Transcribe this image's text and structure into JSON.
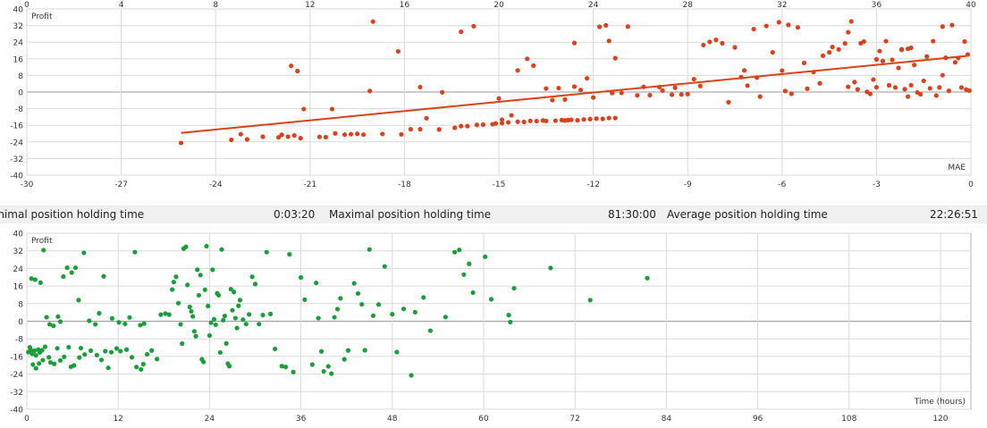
{
  "stats": {
    "min_label": "inimal position holding time",
    "min_value": "0:03:20",
    "max_label": "Maximal position holding time",
    "max_value": "81:30:00",
    "avg_label": "Average position holding time",
    "avg_value": "22:26:51"
  },
  "colors": {
    "mae_series": "#d9421c",
    "time_series": "#1a9e3c",
    "grid": "#d9d9d9",
    "zero_line": "#9a9a9a"
  },
  "chart_data": [
    {
      "type": "scatter",
      "ylabel": "Profit",
      "xlabel": "MAE",
      "xlim": [
        -30,
        0
      ],
      "ylim": [
        -40,
        40
      ],
      "x_ticks": [
        "-30",
        "-27",
        "-24",
        "-21",
        "-18",
        "-15",
        "-12",
        "-9",
        "-6",
        "-3",
        "0"
      ],
      "y_ticks": [
        "40",
        "32",
        "24",
        "16",
        "8",
        "0",
        "-8",
        "-16",
        "-24",
        "-32",
        "-40"
      ],
      "top_ticks": [
        "0",
        "4",
        "8",
        "12",
        "16",
        "20",
        "24",
        "28",
        "32",
        "36",
        "40"
      ],
      "trendline": [
        [
          -25.1,
          -19.7
        ],
        [
          -0.1,
          17.4
        ]
      ],
      "points": [
        [
          -25.1,
          -24.5
        ],
        [
          -23.5,
          -23
        ],
        [
          -23.2,
          -20.3
        ],
        [
          -23.0,
          -22.8
        ],
        [
          -22.5,
          -21.5
        ],
        [
          -22.0,
          -21.8
        ],
        [
          -21.9,
          -20.6
        ],
        [
          -21.7,
          -21.5
        ],
        [
          -21.5,
          -20.9
        ],
        [
          -21.3,
          -22.2
        ],
        [
          -20.7,
          -21.6
        ],
        [
          -20.5,
          -21.7
        ],
        [
          -20.2,
          -19.9
        ],
        [
          -19.9,
          -20.5
        ],
        [
          -19.7,
          -20.3
        ],
        [
          -19.5,
          -20.1
        ],
        [
          -19.3,
          -20.5
        ],
        [
          -18.7,
          -20.2
        ],
        [
          -18.1,
          -20.4
        ],
        [
          -17.8,
          -17.9
        ],
        [
          -17.5,
          -17.9
        ],
        [
          -16.9,
          -18.0
        ],
        [
          -16.4,
          -17.2
        ],
        [
          -16.2,
          -16.4
        ],
        [
          -15.7,
          -15.8
        ],
        [
          -15.5,
          -15.7
        ],
        [
          -15.2,
          -15.5
        ],
        [
          -15.1,
          -15.1
        ],
        [
          -14.9,
          -15.0
        ],
        [
          -14.7,
          -14.6
        ],
        [
          -14.4,
          -14.3
        ],
        [
          -14.2,
          -14.4
        ],
        [
          -14.0,
          -13.9
        ],
        [
          -13.8,
          -14.0
        ],
        [
          -13.5,
          -13.9
        ],
        [
          -13.2,
          -13.8
        ],
        [
          -13.0,
          -13.5
        ],
        [
          -12.9,
          -13.7
        ],
        [
          -12.7,
          -13.4
        ],
        [
          -12.5,
          -13.6
        ],
        [
          -12.3,
          -13.2
        ],
        [
          -12.1,
          -13.0
        ],
        [
          -11.9,
          -12.8
        ],
        [
          -11.7,
          -12.9
        ],
        [
          -11.5,
          -12.5
        ],
        [
          -11.3,
          -12.5
        ],
        [
          -21.6,
          12.6
        ],
        [
          -21.4,
          10.1
        ],
        [
          -21.2,
          -8.2
        ],
        [
          -20.3,
          -8.2
        ],
        [
          -19.1,
          0.5
        ],
        [
          -19.0,
          33.9
        ],
        [
          -18.2,
          19.6
        ],
        [
          -17.5,
          2.4
        ],
        [
          -17.3,
          -12.6
        ],
        [
          -16.8,
          -0.1
        ],
        [
          -15.0,
          -3.1
        ],
        [
          -14.6,
          -11.2
        ],
        [
          -14.4,
          10.4
        ],
        [
          -14.1,
          16.0
        ],
        [
          -13.9,
          12.7
        ],
        [
          -13.5,
          1.7
        ],
        [
          -13.3,
          -3.9
        ],
        [
          -13.1,
          1.9
        ],
        [
          -12.9,
          -3.6
        ],
        [
          -12.6,
          23.6
        ],
        [
          -12.4,
          1.0
        ],
        [
          -12.2,
          6.6
        ],
        [
          -12.0,
          -2.6
        ],
        [
          -11.8,
          31.4
        ],
        [
          -11.6,
          32.1
        ],
        [
          -11.5,
          24.6
        ],
        [
          -11.4,
          -0.5
        ],
        [
          -11.3,
          16.3
        ],
        [
          -11.1,
          -0.4
        ],
        [
          -10.9,
          31.5
        ],
        [
          -10.6,
          -1.6
        ],
        [
          -10.4,
          2.5
        ],
        [
          -10.2,
          -1.5
        ],
        [
          -9.8,
          0.7
        ],
        [
          -9.5,
          -1.3
        ],
        [
          -9.4,
          2.1
        ],
        [
          -9.2,
          -1.2
        ],
        [
          -9.0,
          -1.0
        ],
        [
          -8.8,
          6.2
        ],
        [
          -8.6,
          2.9
        ],
        [
          -8.5,
          22.6
        ],
        [
          -8.3,
          24.1
        ],
        [
          -8.1,
          25.1
        ],
        [
          -7.9,
          23.5
        ],
        [
          -7.7,
          -4.9
        ],
        [
          -7.5,
          21.5
        ],
        [
          -7.3,
          7.2
        ],
        [
          -7.1,
          3.1
        ],
        [
          -6.9,
          30.3
        ],
        [
          -6.7,
          -2.2
        ],
        [
          -6.5,
          31.8
        ],
        [
          -6.3,
          19.1
        ],
        [
          -6.1,
          33.6
        ],
        [
          -6.0,
          10.3
        ],
        [
          -5.8,
          32.3
        ],
        [
          -5.7,
          -0.8
        ],
        [
          -5.5,
          31.1
        ],
        [
          -5.3,
          14.0
        ],
        [
          -5.2,
          1.6
        ],
        [
          -5.0,
          9.6
        ],
        [
          -4.8,
          4.2
        ],
        [
          -4.7,
          17.5
        ],
        [
          -4.5,
          19.1
        ],
        [
          -4.4,
          21.7
        ],
        [
          -4.2,
          20.5
        ],
        [
          -4.0,
          23.4
        ],
        [
          -3.9,
          28.8
        ],
        [
          -3.8,
          34.0
        ],
        [
          -3.7,
          4.8
        ],
        [
          -3.6,
          1.3
        ],
        [
          -3.5,
          23.5
        ],
        [
          -3.4,
          24.3
        ],
        [
          -3.3,
          0.1
        ],
        [
          -3.2,
          -0.9
        ],
        [
          -3.1,
          6.0
        ],
        [
          -3.0,
          2.3
        ],
        [
          -2.9,
          19.7
        ],
        [
          -2.8,
          14.9
        ],
        [
          -2.7,
          24.5
        ],
        [
          -2.6,
          3.2
        ],
        [
          -2.5,
          15.5
        ],
        [
          -2.4,
          2.2
        ],
        [
          -2.3,
          11.6
        ],
        [
          -2.2,
          20.6
        ],
        [
          -2.1,
          1.4
        ],
        [
          -2.0,
          -2.2
        ],
        [
          -1.9,
          3.3
        ],
        [
          -1.8,
          13.0
        ],
        [
          -1.7,
          -0.2
        ],
        [
          -1.6,
          -1.1
        ],
        [
          -1.5,
          5.4
        ],
        [
          -1.4,
          17.1
        ],
        [
          -1.3,
          1.8
        ],
        [
          -1.2,
          24.5
        ],
        [
          -1.1,
          -1.7
        ],
        [
          -1.0,
          2.2
        ],
        [
          -0.9,
          8.1
        ],
        [
          -0.8,
          16.5
        ],
        [
          -0.7,
          0.6
        ],
        [
          -0.6,
          32.2
        ],
        [
          -0.5,
          14.3
        ],
        [
          -0.4,
          16.4
        ],
        [
          -0.3,
          2.2
        ],
        [
          -0.2,
          24.3
        ],
        [
          -0.15,
          1.2
        ],
        [
          -0.1,
          18.1
        ],
        [
          -0.05,
          0.7
        ],
        [
          -0.9,
          31.5
        ],
        [
          -1.9,
          21.3
        ],
        [
          -2.6,
          3.3
        ],
        [
          -3.9,
          2.5
        ],
        [
          -5.9,
          0.5
        ],
        [
          -6.8,
          7.0
        ],
        [
          -7.2,
          10.4
        ],
        [
          -9.9,
          2.4
        ],
        [
          -12.6,
          2.6
        ],
        [
          -16.0,
          -16.4
        ],
        [
          -15.8,
          31.7
        ],
        [
          -16.2,
          29.0
        ],
        [
          -14.9,
          -13.3
        ],
        [
          -13.6,
          -13.7
        ],
        [
          -12.8,
          -13.5
        ],
        [
          -2.0,
          20.8
        ],
        [
          -2.2,
          20.3
        ],
        [
          -3.0,
          15.7
        ]
      ]
    },
    {
      "type": "scatter",
      "ylabel": "Profit",
      "xlabel": "Time (hours)",
      "xlim": [
        0,
        124
      ],
      "ylim": [
        -40,
        40
      ],
      "x_ticks": [
        "0",
        "12",
        "24",
        "36",
        "48",
        "60",
        "72",
        "84",
        "96",
        "108",
        "120"
      ],
      "y_ticks": [
        "40",
        "32",
        "24",
        "16",
        "8",
        "0",
        "-8",
        "-16",
        "-24",
        "-32",
        "-40"
      ],
      "points": [
        [
          0.2,
          -14.0
        ],
        [
          0.5,
          -13.0
        ],
        [
          0.7,
          -14.8
        ],
        [
          1.0,
          -13.4
        ],
        [
          1.2,
          -15.5
        ],
        [
          1.5,
          -12.9
        ],
        [
          1.7,
          -14.2
        ],
        [
          2.0,
          -13.2
        ],
        [
          0.4,
          -11.8
        ],
        [
          0.8,
          -19.7
        ],
        [
          1.2,
          -21.4
        ],
        [
          1.6,
          -19.2
        ],
        [
          2.1,
          -17.7
        ],
        [
          2.4,
          -11.6
        ],
        [
          2.9,
          -16.4
        ],
        [
          3.1,
          -18.7
        ],
        [
          3.6,
          -19.4
        ],
        [
          4.0,
          -12.3
        ],
        [
          4.4,
          -17.8
        ],
        [
          4.9,
          -16.2
        ],
        [
          5.5,
          -11.8
        ],
        [
          5.8,
          -20.7
        ],
        [
          6.2,
          -20.1
        ],
        [
          6.9,
          -16.5
        ],
        [
          7.1,
          -12.2
        ],
        [
          7.6,
          -15.1
        ],
        [
          8.4,
          -13.4
        ],
        [
          9.2,
          -15.4
        ],
        [
          9.8,
          -17.6
        ],
        [
          10.3,
          -13.6
        ],
        [
          10.7,
          -21.2
        ],
        [
          11.1,
          -14.1
        ],
        [
          11.8,
          -12.4
        ],
        [
          12.3,
          -13.6
        ],
        [
          13.1,
          -12.9
        ],
        [
          13.8,
          -16.4
        ],
        [
          14.4,
          -20.8
        ],
        [
          15.0,
          -21.9
        ],
        [
          15.3,
          -19.5
        ],
        [
          15.8,
          -15.0
        ],
        [
          0.6,
          19.4
        ],
        [
          1.1,
          18.9
        ],
        [
          1.8,
          17.5
        ],
        [
          2.2,
          32.3
        ],
        [
          2.6,
          1.8
        ],
        [
          3.0,
          -1.4
        ],
        [
          3.5,
          -2.1
        ],
        [
          4.1,
          2.1
        ],
        [
          4.4,
          -0.2
        ],
        [
          4.8,
          20.3
        ],
        [
          5.3,
          24.3
        ],
        [
          5.9,
          22.1
        ],
        [
          6.4,
          24.3
        ],
        [
          6.8,
          9.6
        ],
        [
          7.5,
          31.1
        ],
        [
          8.2,
          0.2
        ],
        [
          9.0,
          -1.4
        ],
        [
          9.5,
          3.6
        ],
        [
          10.1,
          20.4
        ],
        [
          11.2,
          1.3
        ],
        [
          12.1,
          -0.5
        ],
        [
          12.9,
          -1.2
        ],
        [
          13.5,
          1.7
        ],
        [
          14.2,
          31.4
        ],
        [
          14.9,
          -1.8
        ],
        [
          15.4,
          -1.1
        ],
        [
          16.4,
          -13.3
        ],
        [
          17.1,
          -17.2
        ],
        [
          17.6,
          3.0
        ],
        [
          18.2,
          3.5
        ],
        [
          18.7,
          3.0
        ],
        [
          19.1,
          14.4
        ],
        [
          19.3,
          17.8
        ],
        [
          19.6,
          20.2
        ],
        [
          19.9,
          8.2
        ],
        [
          20.2,
          -1.4
        ],
        [
          20.4,
          -10.2
        ],
        [
          20.6,
          33.0
        ],
        [
          20.9,
          33.8
        ],
        [
          21.1,
          16.5
        ],
        [
          21.4,
          6.5
        ],
        [
          21.6,
          4.5
        ],
        [
          21.8,
          2.2
        ],
        [
          22.0,
          -4.6
        ],
        [
          22.2,
          -6.8
        ],
        [
          22.4,
          23.4
        ],
        [
          22.6,
          11.8
        ],
        [
          22.8,
          21.0
        ],
        [
          23.0,
          -17.3
        ],
        [
          23.2,
          -18.5
        ],
        [
          23.4,
          14.3
        ],
        [
          23.6,
          34.1
        ],
        [
          23.8,
          6.9
        ],
        [
          24.0,
          -6.5
        ],
        [
          24.2,
          -0.7
        ],
        [
          24.4,
          23.4
        ],
        [
          24.6,
          0.9
        ],
        [
          24.8,
          -1.6
        ],
        [
          25.0,
          12.7
        ],
        [
          25.2,
          11.8
        ],
        [
          25.4,
          -14.2
        ],
        [
          25.6,
          32.6
        ],
        [
          25.8,
          0.5
        ],
        [
          26.0,
          2.4
        ],
        [
          26.2,
          -10.1
        ],
        [
          26.4,
          -19.3
        ],
        [
          26.6,
          -20.4
        ],
        [
          26.8,
          14.6
        ],
        [
          27.0,
          5.0
        ],
        [
          27.2,
          13.3
        ],
        [
          27.4,
          1.4
        ],
        [
          27.6,
          -3.1
        ],
        [
          27.8,
          7.0
        ],
        [
          28.0,
          9.6
        ],
        [
          28.4,
          0.7
        ],
        [
          28.8,
          -1.3
        ],
        [
          29.2,
          3.1
        ],
        [
          29.6,
          20.2
        ],
        [
          30.0,
          16.9
        ],
        [
          30.5,
          -1.3
        ],
        [
          31.0,
          2.8
        ],
        [
          31.5,
          31.4
        ],
        [
          32.0,
          3.3
        ],
        [
          32.6,
          -12.6
        ],
        [
          33.5,
          -20.4
        ],
        [
          34.0,
          -20.8
        ],
        [
          34.5,
          30.4
        ],
        [
          35.0,
          -23.1
        ],
        [
          36.0,
          19.9
        ],
        [
          36.5,
          9.8
        ],
        [
          37.5,
          -19.7
        ],
        [
          38.0,
          17.4
        ],
        [
          38.3,
          1.4
        ],
        [
          38.7,
          -13.7
        ],
        [
          39.0,
          -22.8
        ],
        [
          39.6,
          -20.5
        ],
        [
          40.0,
          -23.8
        ],
        [
          40.4,
          1.8
        ],
        [
          40.8,
          5.5
        ],
        [
          41.2,
          10.4
        ],
        [
          41.7,
          -17.3
        ],
        [
          42.2,
          -13.3
        ],
        [
          43.0,
          17.2
        ],
        [
          43.5,
          12.6
        ],
        [
          44.0,
          7.7
        ],
        [
          44.4,
          -13.2
        ],
        [
          45.0,
          32.6
        ],
        [
          45.5,
          2.5
        ],
        [
          46.2,
          7.6
        ],
        [
          47.0,
          24.9
        ],
        [
          48.0,
          3.2
        ],
        [
          48.6,
          -14.0
        ],
        [
          49.5,
          5.6
        ],
        [
          50.5,
          -24.6
        ],
        [
          51.0,
          4.1
        ],
        [
          52.1,
          10.8
        ],
        [
          53.0,
          -4.3
        ],
        [
          55.0,
          1.9
        ],
        [
          56.2,
          31.4
        ],
        [
          56.8,
          32.4
        ],
        [
          57.4,
          21.2
        ],
        [
          58.1,
          26.1
        ],
        [
          58.6,
          13.0
        ],
        [
          60.2,
          29.3
        ],
        [
          61.0,
          10.0
        ],
        [
          63.3,
          2.8
        ],
        [
          63.5,
          -0.4
        ],
        [
          64.0,
          15.0
        ],
        [
          68.8,
          24.2
        ],
        [
          74.0,
          9.6
        ],
        [
          81.5,
          19.6
        ]
      ]
    }
  ]
}
